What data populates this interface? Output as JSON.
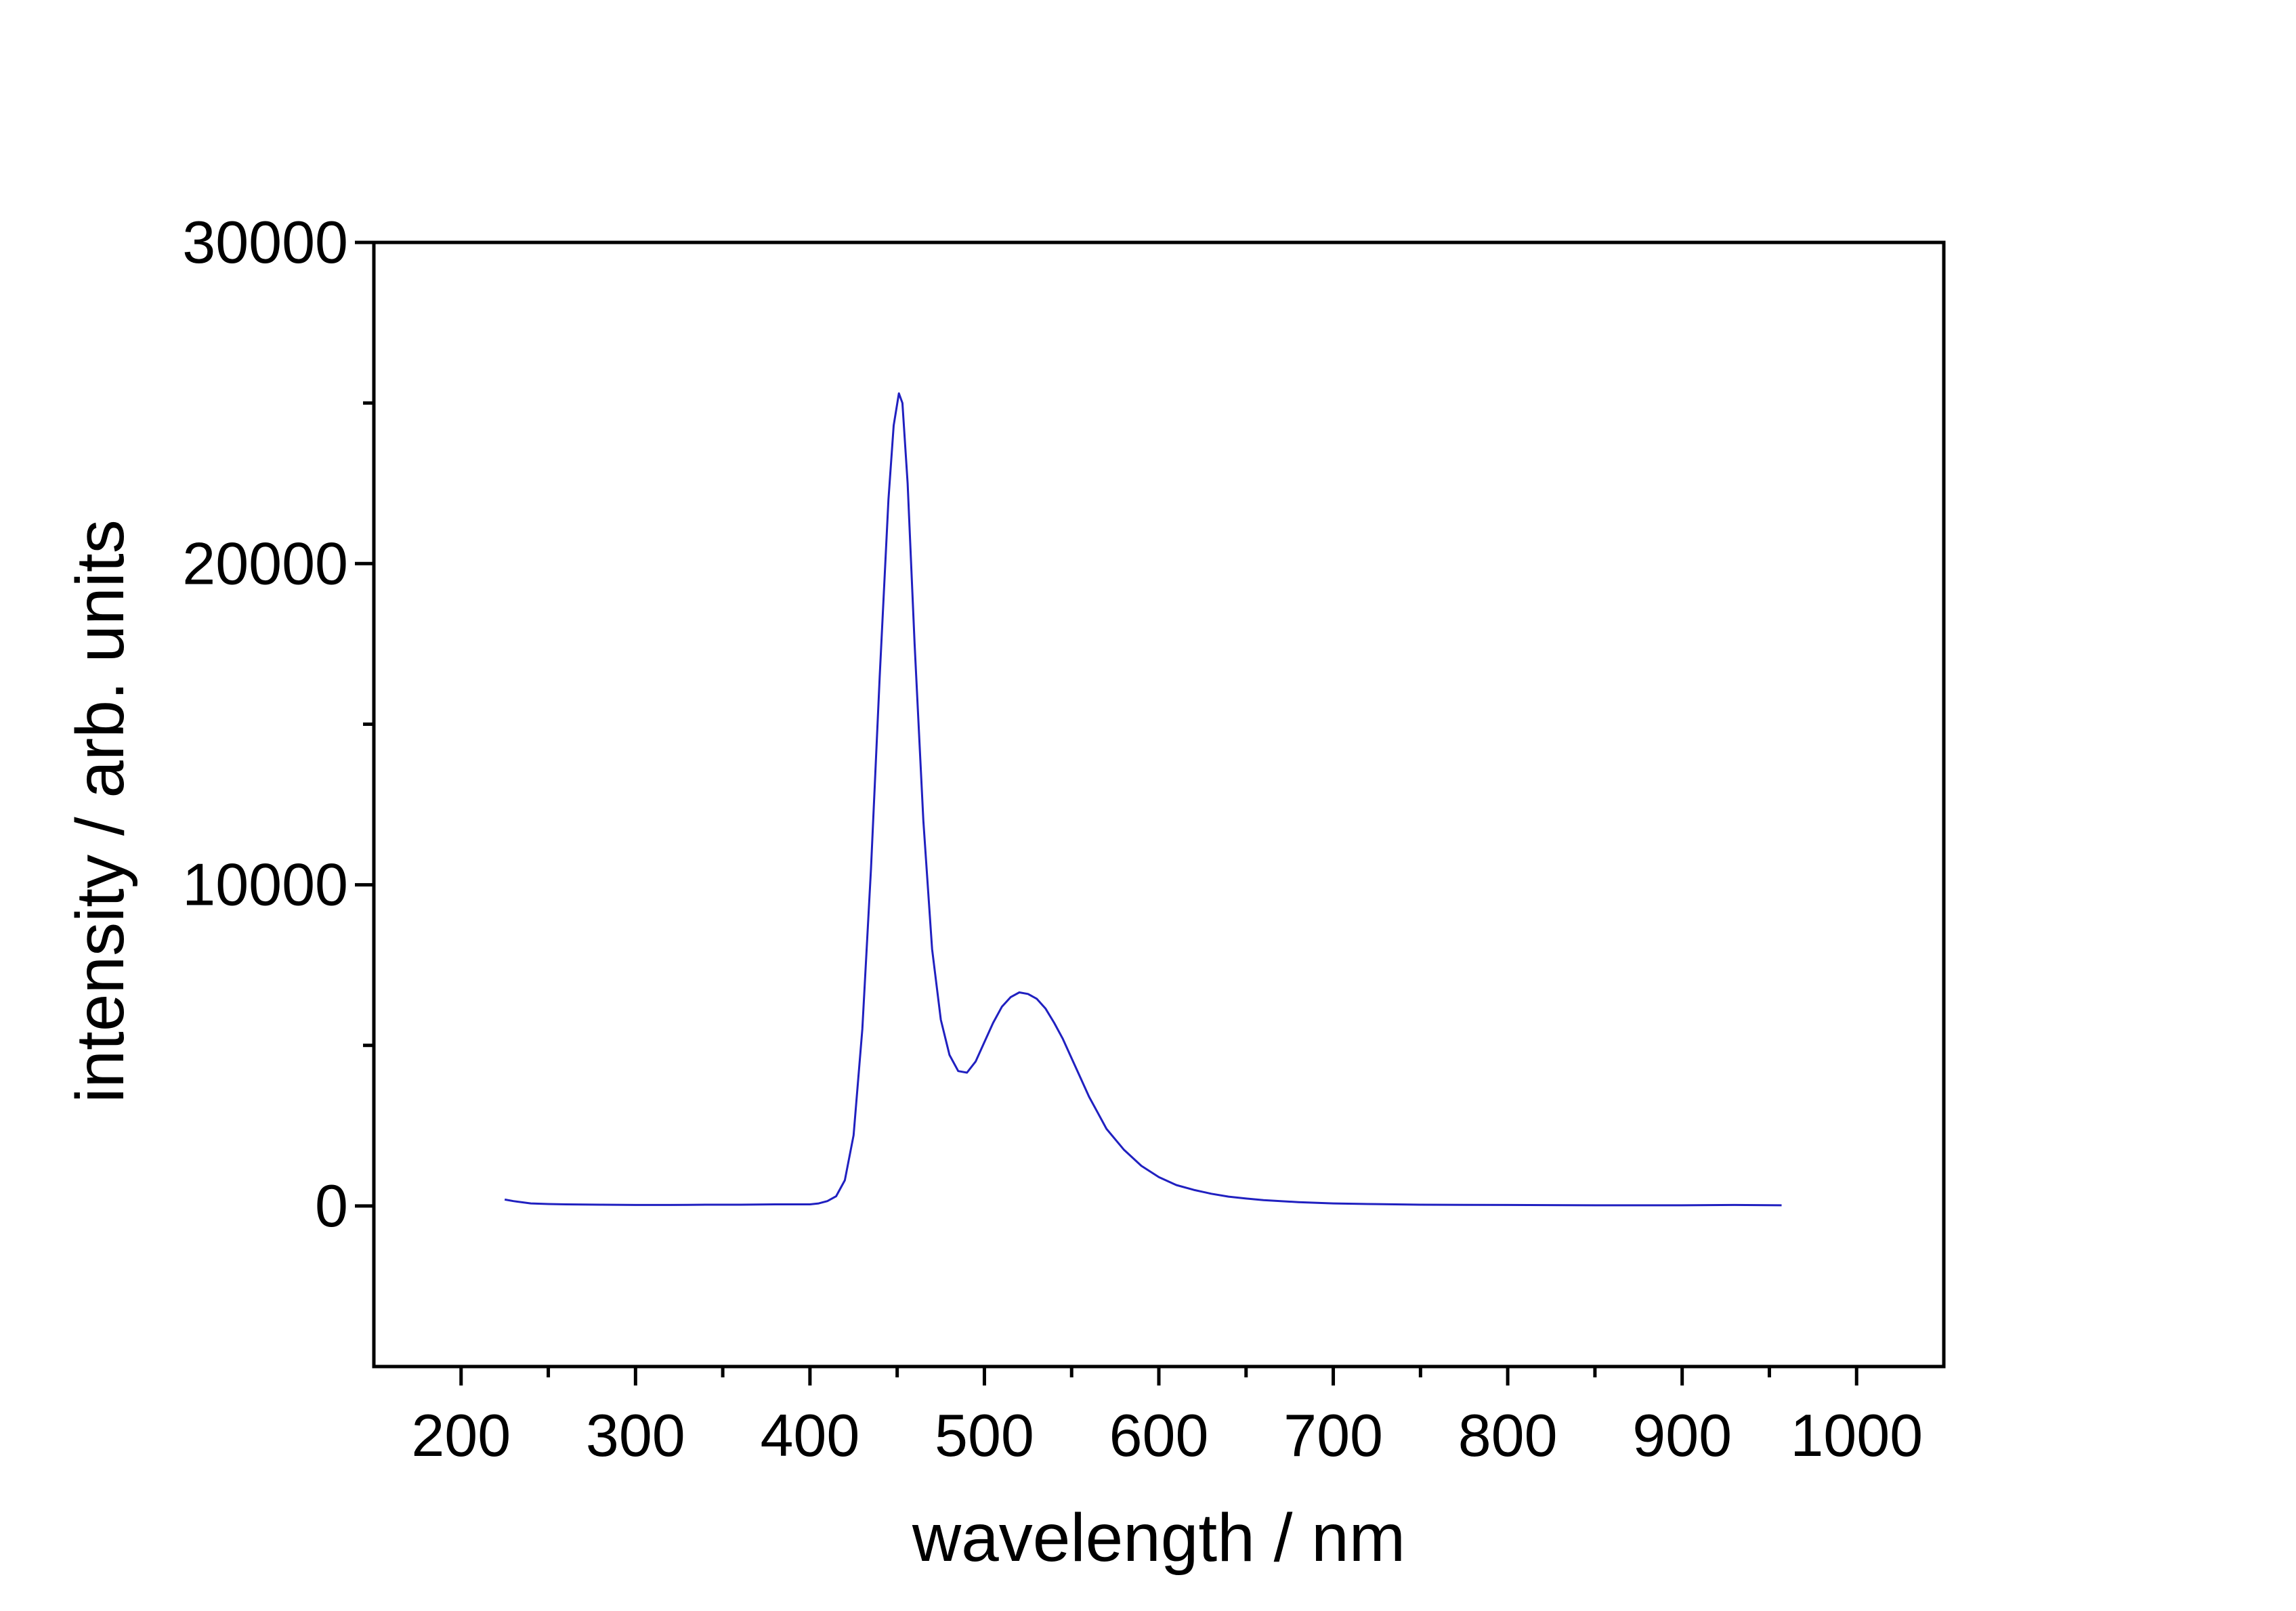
{
  "chart_data": {
    "type": "line",
    "title": "",
    "xlabel": "wavelength / nm",
    "ylabel": "intensity / arb. units",
    "xlim": [
      150,
      1050
    ],
    "ylim": [
      -5000,
      30000
    ],
    "x_ticks": [
      200,
      300,
      400,
      500,
      600,
      700,
      800,
      900,
      1000
    ],
    "x_tick_labels": [
      "200",
      "300",
      "400",
      "500",
      "600",
      "700",
      "800",
      "900",
      "1000"
    ],
    "y_ticks": [
      0,
      10000,
      20000,
      30000
    ],
    "y_tick_labels": [
      "0",
      "10000",
      "20000",
      "30000"
    ],
    "grid": false,
    "legend": "none",
    "series": [
      {
        "color": "#2020c0",
        "x": [
          225,
          230,
          240,
          250,
          260,
          280,
          300,
          320,
          340,
          360,
          380,
          400,
          405,
          410,
          415,
          420,
          425,
          430,
          435,
          440,
          445,
          448,
          451,
          453,
          456,
          460,
          465,
          470,
          475,
          480,
          485,
          490,
          495,
          500,
          505,
          510,
          515,
          520,
          525,
          530,
          535,
          540,
          545,
          550,
          555,
          560,
          565,
          570,
          580,
          590,
          600,
          610,
          620,
          630,
          640,
          650,
          660,
          680,
          700,
          720,
          750,
          800,
          850,
          900,
          930,
          957
        ],
        "y": [
          200,
          150,
          80,
          60,
          50,
          40,
          30,
          30,
          40,
          40,
          50,
          50,
          80,
          150,
          300,
          800,
          2200,
          5500,
          10500,
          16500,
          22000,
          24300,
          25300,
          25000,
          22500,
          17500,
          12000,
          8000,
          5800,
          4700,
          4200,
          4150,
          4500,
          5100,
          5700,
          6200,
          6500,
          6650,
          6600,
          6450,
          6150,
          5700,
          5200,
          4600,
          4000,
          3400,
          2900,
          2400,
          1750,
          1250,
          900,
          650,
          500,
          380,
          290,
          230,
          180,
          120,
          80,
          60,
          40,
          30,
          20,
          20,
          30,
          20
        ]
      }
    ]
  }
}
